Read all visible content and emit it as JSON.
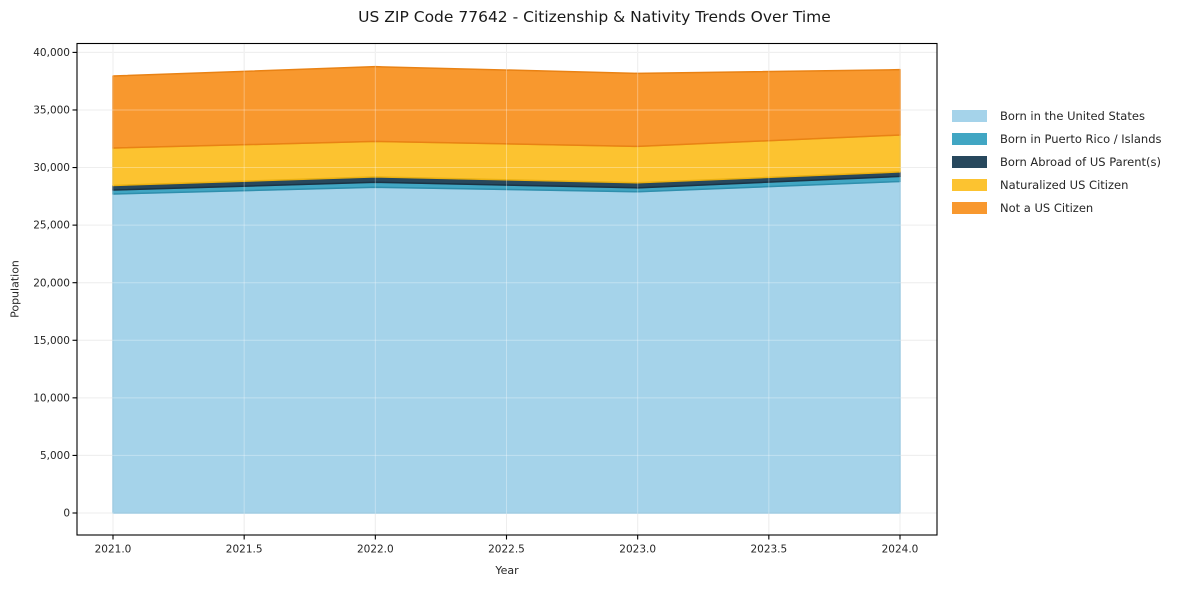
{
  "chart_data": {
    "type": "area",
    "stacked": true,
    "title": "US ZIP Code 77642 - Citizenship & Nativity Trends Over Time",
    "xlabel": "Year",
    "ylabel": "Population",
    "x": [
      2021,
      2022,
      2023,
      2024
    ],
    "series": [
      {
        "name": "Born in the United States",
        "values": [
          27700,
          28290,
          27900,
          28790
        ],
        "color": "#a5d3ea",
        "edge": "#87bfdb"
      },
      {
        "name": "Born in Puerto Rico / Islands",
        "values": [
          350,
          430,
          340,
          440
        ],
        "color": "#41a6c3",
        "edge": "#2f8fad"
      },
      {
        "name": "Born Abroad of US Parent(s)",
        "values": [
          390,
          470,
          440,
          390
        ],
        "color": "#27485d",
        "edge": "#1b3344"
      },
      {
        "name": "Naturalized US Citizen",
        "values": [
          3260,
          3080,
          3160,
          3210
        ],
        "color": "#fcc330",
        "edge": "#eab010"
      },
      {
        "name": "Not a US Citizen",
        "values": [
          6250,
          6490,
          6340,
          5670
        ],
        "color": "#f8982e",
        "edge": "#e98214"
      }
    ],
    "totals": [
      37950,
      38760,
      38180,
      38500
    ],
    "xticks": [
      2021.0,
      2021.5,
      2022.0,
      2022.5,
      2023.0,
      2023.5,
      2024.0
    ],
    "xtick_labels": [
      "2021.0",
      "2021.5",
      "2022.0",
      "2022.5",
      "2023.0",
      "2023.5",
      "2024.0"
    ],
    "yticks": [
      0,
      5000,
      10000,
      15000,
      20000,
      25000,
      30000,
      35000,
      40000
    ],
    "ytick_labels": [
      "0",
      "5,000",
      "10,000",
      "15,000",
      "20,000",
      "25,000",
      "30,000",
      "35,000",
      "40,000"
    ],
    "ylim": [
      0,
      40000
    ],
    "grid": true,
    "legend_position": "right-outside"
  },
  "colors": {
    "background": "#ffffff",
    "grid": "#e6e6e6",
    "axis": "#000000",
    "tick_text": "#262626",
    "title_text": "#1a1a1a"
  }
}
